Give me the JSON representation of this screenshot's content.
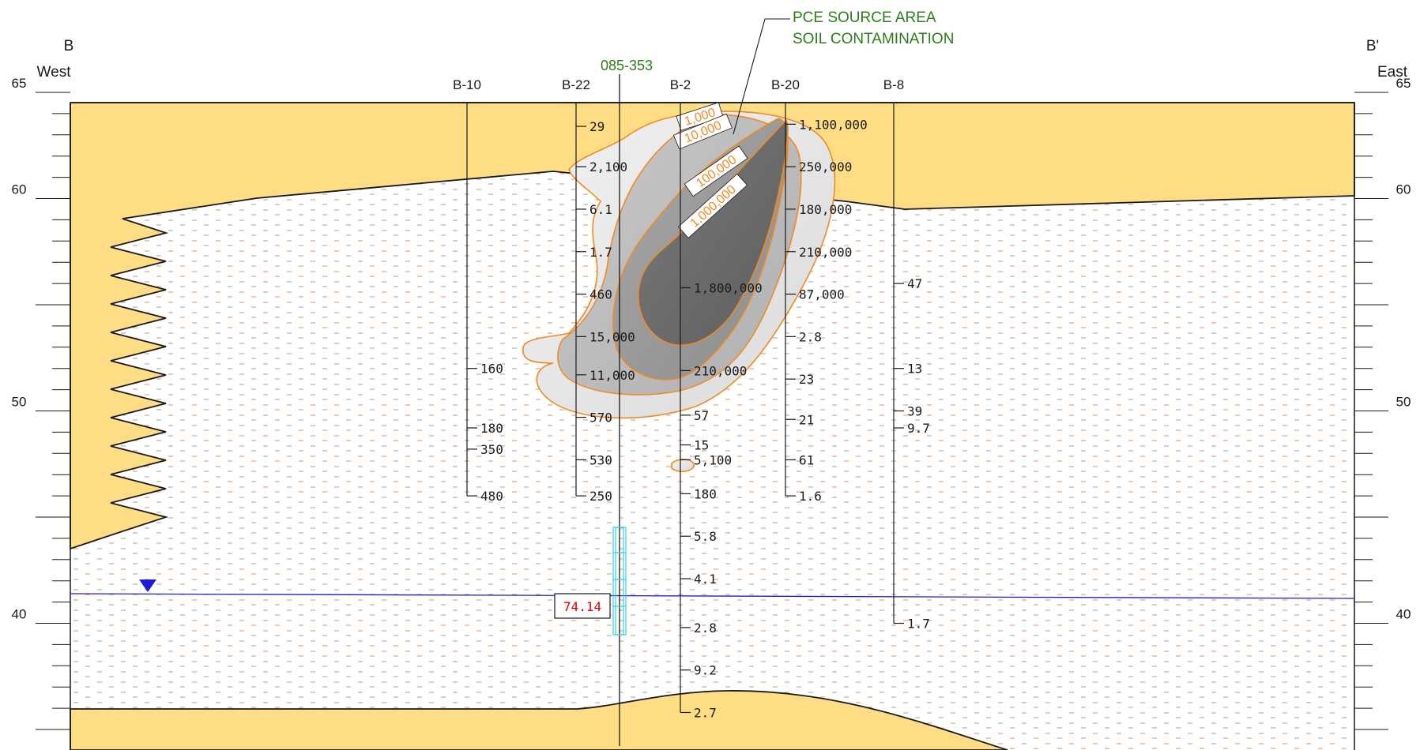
{
  "section": {
    "left_end": {
      "letter": "B",
      "direction": "West"
    },
    "right_end": {
      "letter": "B'",
      "direction": "East"
    },
    "elevation_labels": [
      {
        "value": 65,
        "text": "65"
      },
      {
        "value": 60,
        "text": "60"
      },
      {
        "value": 50,
        "text": "50"
      },
      {
        "value": 40,
        "text": "40"
      }
    ],
    "well": {
      "id": "085-353",
      "water_level_label": "74.14"
    },
    "callout": {
      "line1": "PCE SOURCE AREA",
      "line2": "SOIL CONTAMINATION"
    },
    "contour_labels": [
      "1,000",
      "10,000",
      "100,000",
      "1,000,000"
    ],
    "borings": [
      {
        "id": "B-10",
        "samples": [
          {
            "elev": 52,
            "text": "160"
          },
          {
            "elev": 49.2,
            "text": "180"
          },
          {
            "elev": 48.2,
            "text": "350"
          },
          {
            "elev": 46,
            "text": "480"
          }
        ]
      },
      {
        "id": "B-22",
        "samples": [
          {
            "elev": 63.4,
            "text": "29"
          },
          {
            "elev": 61.5,
            "text": "2,100"
          },
          {
            "elev": 59.5,
            "text": "6.1"
          },
          {
            "elev": 57.5,
            "text": "1.7"
          },
          {
            "elev": 55.5,
            "text": "460"
          },
          {
            "elev": 53.5,
            "text": "15,000"
          },
          {
            "elev": 51.7,
            "text": "11,000"
          },
          {
            "elev": 49.7,
            "text": "570"
          },
          {
            "elev": 47.7,
            "text": "530"
          },
          {
            "elev": 46,
            "text": "250"
          }
        ]
      },
      {
        "id": "B-2",
        "samples": [
          {
            "elev": 55.8,
            "text": "1,800,000"
          },
          {
            "elev": 51.9,
            "text": "210,000"
          },
          {
            "elev": 49.8,
            "text": "57"
          },
          {
            "elev": 48.4,
            "text": "15"
          },
          {
            "elev": 47.7,
            "text": "5,100"
          },
          {
            "elev": 46.1,
            "text": "180"
          },
          {
            "elev": 44.1,
            "text": "5.8"
          },
          {
            "elev": 42.1,
            "text": "4.1"
          },
          {
            "elev": 39.8,
            "text": "2.8"
          },
          {
            "elev": 37.8,
            "text": "9.2"
          },
          {
            "elev": 35.8,
            "text": "2.7"
          }
        ]
      },
      {
        "id": "B-20",
        "samples": [
          {
            "elev": 63.5,
            "text": "1,100,000"
          },
          {
            "elev": 61.5,
            "text": "250,000"
          },
          {
            "elev": 59.5,
            "text": "180,000"
          },
          {
            "elev": 57.5,
            "text": "210,000"
          },
          {
            "elev": 55.5,
            "text": "87,000"
          },
          {
            "elev": 53.5,
            "text": "2.8"
          },
          {
            "elev": 51.5,
            "text": "23"
          },
          {
            "elev": 49.6,
            "text": "21"
          },
          {
            "elev": 47.7,
            "text": "61"
          },
          {
            "elev": 46,
            "text": "1.6"
          }
        ]
      },
      {
        "id": "B-8",
        "samples": [
          {
            "elev": 56,
            "text": "47"
          },
          {
            "elev": 52,
            "text": "13"
          },
          {
            "elev": 50,
            "text": "39"
          },
          {
            "elev": 49.2,
            "text": "9.7"
          },
          {
            "elev": 40,
            "text": "1.7"
          }
        ]
      }
    ],
    "colors": {
      "sand": "#fedd85",
      "callout_green": "#2e7d1a",
      "contour_orange": "#f08a24",
      "water_blue": "#1c1cd6",
      "screen_cyan": "#30d0e0",
      "wl_red": "#e00000",
      "silt_dash": "#c89a7a"
    }
  }
}
